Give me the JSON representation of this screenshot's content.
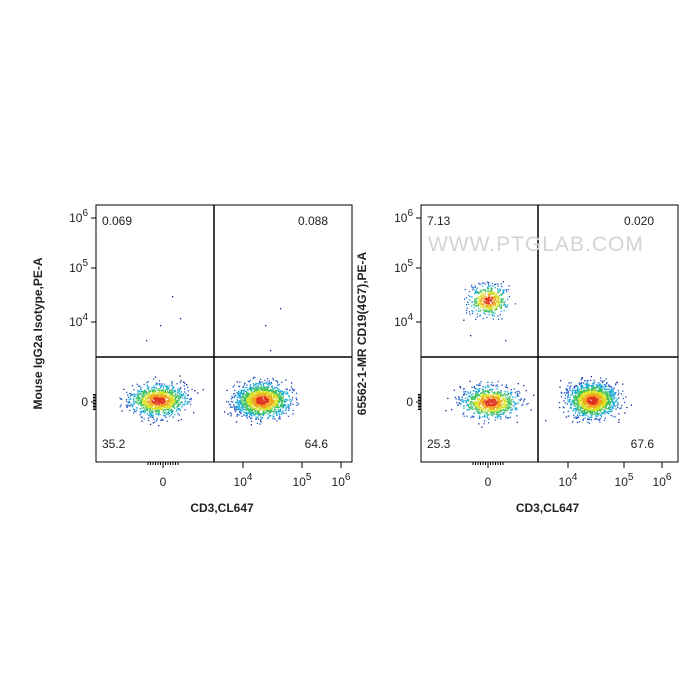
{
  "watermark": "WWW.PTGLAB.COM",
  "panels": [
    {
      "y_label": "Mouse IgG2a Isotype,PE-A",
      "x_label": "CD3,CL647",
      "quadrants": {
        "upper_left": "0.069",
        "upper_right": "0.088",
        "lower_left": "35.2",
        "lower_right": "64.6"
      },
      "y_ticks": [
        {
          "base": "10",
          "exp": "6"
        },
        {
          "base": "10",
          "exp": "5"
        },
        {
          "base": "10",
          "exp": "4"
        },
        "0"
      ],
      "x_ticks": [
        "0",
        {
          "base": "10",
          "exp": "4"
        },
        {
          "base": "10",
          "exp": "5"
        },
        {
          "base": "10",
          "exp": "6"
        }
      ]
    },
    {
      "y_label": "65562-1-MR CD19(4G7),PE-A",
      "x_label": "CD3,CL647",
      "quadrants": {
        "upper_left": "7.13",
        "upper_right": "0.020",
        "lower_left": "25.3",
        "lower_right": "67.6"
      },
      "y_ticks": [
        {
          "base": "10",
          "exp": "6"
        },
        {
          "base": "10",
          "exp": "5"
        },
        {
          "base": "10",
          "exp": "4"
        },
        "0"
      ],
      "x_ticks": [
        "0",
        {
          "base": "10",
          "exp": "4"
        },
        {
          "base": "10",
          "exp": "5"
        },
        {
          "base": "10",
          "exp": "6"
        }
      ]
    }
  ]
}
